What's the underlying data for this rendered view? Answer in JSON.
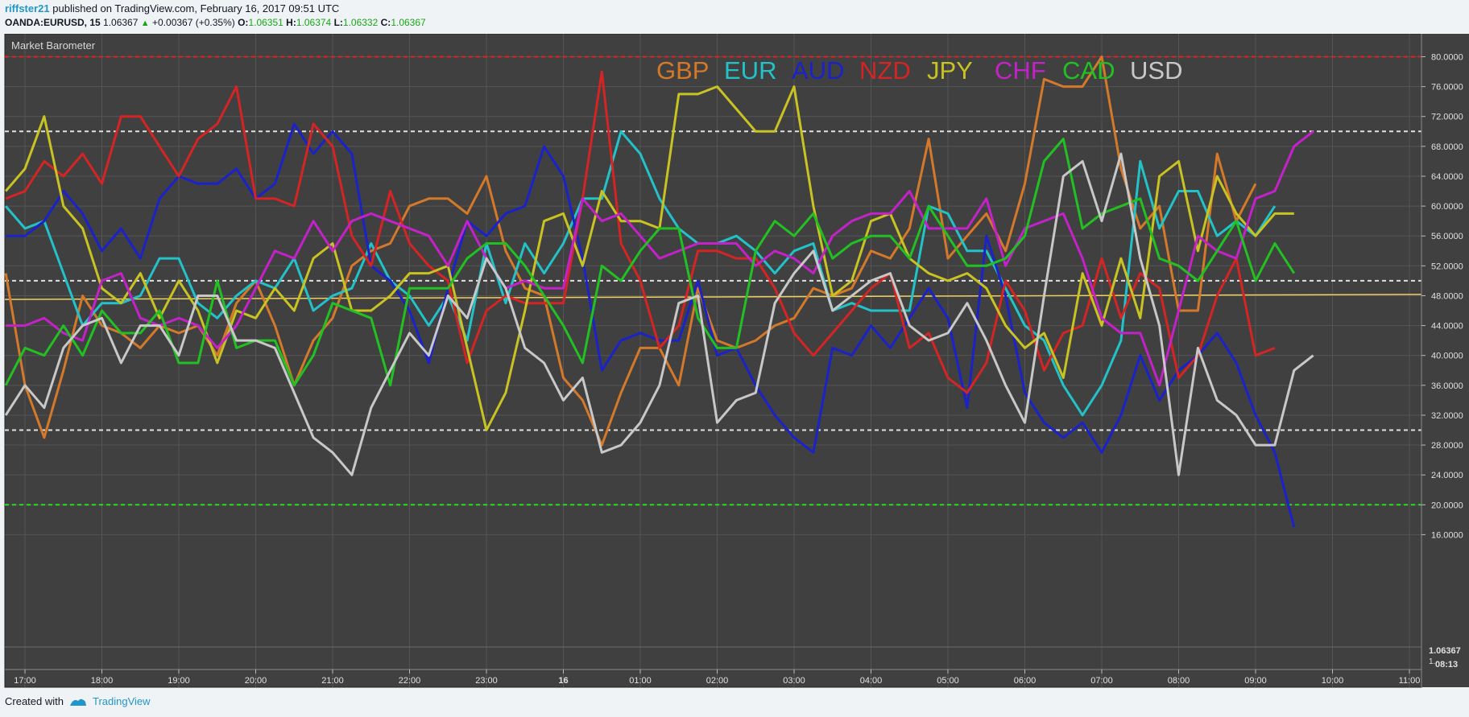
{
  "header": {
    "user": "riffster21",
    "published": "published on TradingView.com, February 16, 2017 09:51 UTC",
    "symbol": "OANDA:EURUSD, 15",
    "price": "1.06367",
    "change_arrow": "▲",
    "change": "+0.00367 (+0.35%)",
    "open_label": "O:",
    "open": "1.06351",
    "high_label": "H:",
    "high": "1.06374",
    "low_label": "L:",
    "low": "1.06332",
    "close_label": "C:",
    "close": "1.06367"
  },
  "indicator_label": "Market Barometer",
  "price_axis": {
    "current": "1.06367",
    "second": "1.",
    "countdown": "08:13"
  },
  "footer": {
    "created_with": "Created with",
    "brand": "TradingView"
  },
  "colors": {
    "background": "#404040",
    "grid": "#555555",
    "GBP": "#d4792a",
    "EUR": "#22c2c8",
    "AUD": "#1a22c8",
    "NZD": "#d42424",
    "JPY": "#c8c222",
    "CHF": "#c222c8",
    "CAD": "#22c022",
    "USD": "#c8c8c8",
    "price_line": "#f0d060"
  },
  "chart_data": {
    "type": "line",
    "title": "",
    "ylim": [
      14,
      82
    ],
    "y_ticks": [
      "80.0000",
      "76.0000",
      "72.0000",
      "68.0000",
      "64.0000",
      "60.0000",
      "56.0000",
      "52.0000",
      "48.0000",
      "44.0000",
      "40.0000",
      "36.0000",
      "32.0000",
      "28.0000",
      "24.0000",
      "20.0000",
      "16.0000"
    ],
    "x_ticks": [
      "17:00",
      "18:00",
      "19:00",
      "20:00",
      "21:00",
      "22:00",
      "23:00",
      "16",
      "01:00",
      "02:00",
      "03:00",
      "04:00",
      "05:00",
      "06:00",
      "07:00",
      "08:00",
      "09:00",
      "10:00",
      "11:00"
    ],
    "x_range_hours": [
      16.75,
      35.2
    ],
    "x_start_hour": 16.75,
    "x_step_hours": 0.25,
    "reference_levels": [
      {
        "value": 80,
        "color": "#e02020"
      },
      {
        "value": 70,
        "color": "#e0e0e0"
      },
      {
        "value": 50,
        "color": "#e0e0e0"
      },
      {
        "value": 30,
        "color": "#e0e0e0"
      },
      {
        "value": 20,
        "color": "#20e020"
      }
    ],
    "price_line": {
      "y_start": 47.5,
      "y_end": 48.2
    },
    "legend": [
      "GBP",
      "EUR",
      "AUD",
      "NZD",
      "JPY",
      "CHF",
      "CAD",
      "USD"
    ],
    "series": [
      {
        "name": "GBP",
        "values": [
          51,
          36,
          29,
          38,
          48,
          44,
          43,
          41,
          44,
          43,
          44,
          40,
          47,
          50,
          44,
          36,
          42,
          45,
          52,
          54,
          55,
          60,
          61,
          61,
          59,
          64,
          54,
          49,
          48,
          37,
          34,
          28,
          35,
          41,
          41,
          36,
          49,
          42,
          41,
          42,
          44,
          45,
          49,
          48,
          49,
          54,
          53,
          57,
          69,
          53,
          56,
          59,
          54,
          63,
          77,
          76,
          76,
          80,
          65,
          57,
          60,
          46,
          46,
          67,
          58,
          63
        ]
      },
      {
        "name": "EUR",
        "values": [
          60,
          57,
          58,
          51,
          44,
          47,
          47,
          48,
          53,
          53,
          47,
          45,
          48,
          50,
          49,
          53,
          46,
          48,
          49,
          55,
          50,
          48,
          44,
          48,
          42,
          55,
          47,
          55,
          51,
          55,
          61,
          61,
          70,
          67,
          61,
          57,
          55,
          55,
          56,
          54,
          51,
          54,
          55,
          46,
          47,
          46,
          46,
          46,
          60,
          59,
          54,
          54,
          49,
          44,
          42,
          36,
          32,
          36,
          42,
          66,
          57,
          62,
          62,
          56,
          58,
          56,
          60
        ]
      },
      {
        "name": "AUD",
        "values": [
          56,
          56,
          58,
          62,
          59,
          54,
          57,
          53,
          61,
          64,
          63,
          63,
          65,
          61,
          63,
          71,
          67,
          70,
          67,
          52,
          50,
          46,
          39,
          49,
          58,
          56,
          59,
          60,
          68,
          64,
          53,
          38,
          42,
          43,
          42,
          42,
          50,
          40,
          41,
          36,
          32,
          29,
          27,
          41,
          40,
          44,
          41,
          45,
          49,
          45,
          33,
          56,
          48,
          35,
          31,
          29,
          31,
          27,
          32,
          40,
          34,
          38,
          40,
          43,
          39,
          32,
          27,
          17
        ]
      },
      {
        "name": "NZD",
        "values": [
          61,
          62,
          66,
          64,
          67,
          63,
          72,
          72,
          68,
          64,
          69,
          71,
          76,
          61,
          61,
          60,
          71,
          68,
          56,
          52,
          62,
          55,
          52,
          50,
          39,
          46,
          48,
          47,
          47,
          47,
          61,
          78,
          55,
          50,
          41,
          44,
          54,
          54,
          53,
          53,
          49,
          43,
          40,
          43,
          46,
          49,
          51,
          41,
          43,
          37,
          35,
          39,
          50,
          46,
          38,
          43,
          44,
          53,
          45,
          51,
          49,
          37,
          40,
          48,
          53,
          40,
          41
        ]
      },
      {
        "name": "JPY",
        "values": [
          62,
          65,
          72,
          60,
          57,
          49,
          47,
          51,
          45,
          50,
          46,
          39,
          46,
          45,
          49,
          46,
          53,
          55,
          46,
          46,
          48,
          51,
          51,
          52,
          41,
          30,
          35,
          46,
          58,
          59,
          52,
          62,
          58,
          58,
          57,
          75,
          75,
          76,
          73,
          70,
          70,
          76,
          60,
          48,
          50,
          58,
          59,
          53,
          51,
          50,
          51,
          49,
          44,
          41,
          43,
          37,
          51,
          44,
          53,
          45,
          64,
          66,
          54,
          64,
          59,
          56,
          59,
          59
        ]
      },
      {
        "name": "CHF",
        "values": [
          44,
          44,
          45,
          43,
          42,
          50,
          51,
          45,
          44,
          45,
          44,
          41,
          44,
          49,
          54,
          53,
          58,
          54,
          58,
          59,
          58,
          57,
          56,
          52,
          58,
          53,
          49,
          50,
          49,
          49,
          61,
          58,
          59,
          56,
          53,
          54,
          55,
          55,
          55,
          52,
          54,
          53,
          51,
          56,
          58,
          59,
          59,
          62,
          57,
          57,
          57,
          61,
          52,
          57,
          58,
          59,
          53,
          45,
          43,
          43,
          36,
          46,
          56,
          54,
          53,
          61,
          62,
          68,
          70
        ]
      },
      {
        "name": "CAD",
        "values": [
          36,
          41,
          40,
          44,
          40,
          46,
          43,
          43,
          46,
          39,
          39,
          50,
          41,
          42,
          42,
          36,
          40,
          47,
          46,
          45,
          36,
          49,
          49,
          49,
          53,
          55,
          55,
          52,
          48,
          44,
          39,
          52,
          50,
          54,
          57,
          57,
          45,
          41,
          41,
          54,
          58,
          56,
          59,
          53,
          55,
          56,
          56,
          53,
          60,
          56,
          52,
          52,
          53,
          56,
          66,
          69,
          57,
          59,
          60,
          61,
          53,
          52,
          50,
          54,
          58,
          50,
          55,
          51
        ]
      },
      {
        "name": "USD",
        "values": [
          32,
          36,
          33,
          41,
          44,
          45,
          39,
          44,
          44,
          40,
          48,
          48,
          42,
          42,
          41,
          35,
          29,
          27,
          24,
          33,
          38,
          43,
          40,
          48,
          45,
          53,
          49,
          41,
          39,
          34,
          37,
          27,
          28,
          31,
          36,
          47,
          48,
          31,
          34,
          35,
          47,
          51,
          54,
          46,
          48,
          50,
          51,
          44,
          42,
          43,
          47,
          42,
          36,
          31,
          48,
          64,
          66,
          58,
          67,
          53,
          44,
          24,
          41,
          34,
          32,
          28,
          28,
          38,
          40
        ]
      }
    ]
  }
}
